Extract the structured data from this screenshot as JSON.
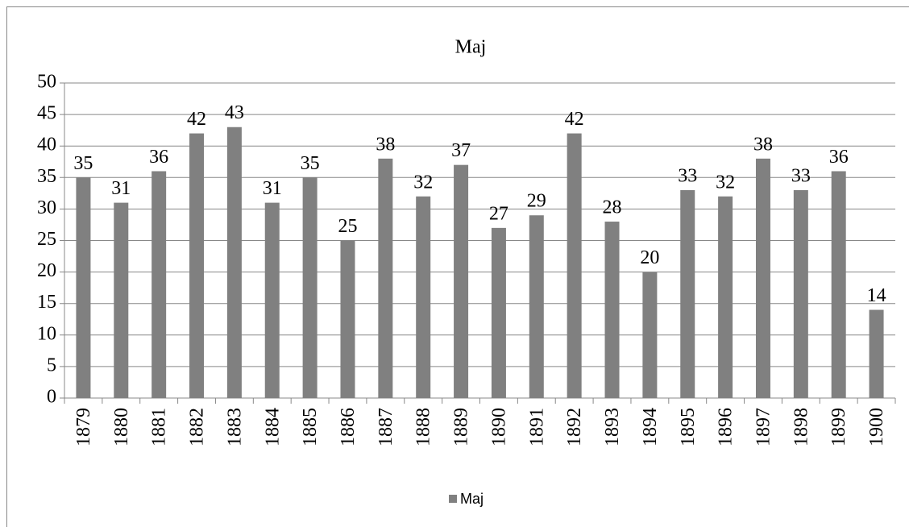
{
  "chart_data": {
    "type": "bar",
    "title": "Maj",
    "categories": [
      "1879",
      "1880",
      "1881",
      "1882",
      "1883",
      "1884",
      "1885",
      "1886",
      "1887",
      "1888",
      "1889",
      "1890",
      "1891",
      "1892",
      "1893",
      "1894",
      "1895",
      "1896",
      "1897",
      "1898",
      "1899",
      "1900"
    ],
    "series": [
      {
        "name": "Maj",
        "color": "#808080",
        "values": [
          35,
          31,
          36,
          42,
          43,
          31,
          35,
          25,
          38,
          32,
          37,
          27,
          29,
          42,
          28,
          20,
          33,
          32,
          38,
          33,
          36,
          14
        ]
      }
    ],
    "ylim": [
      0,
      50
    ],
    "yticks": [
      0,
      5,
      10,
      15,
      20,
      25,
      30,
      35,
      40,
      45,
      50
    ],
    "grid": true,
    "legend": "bottom"
  }
}
